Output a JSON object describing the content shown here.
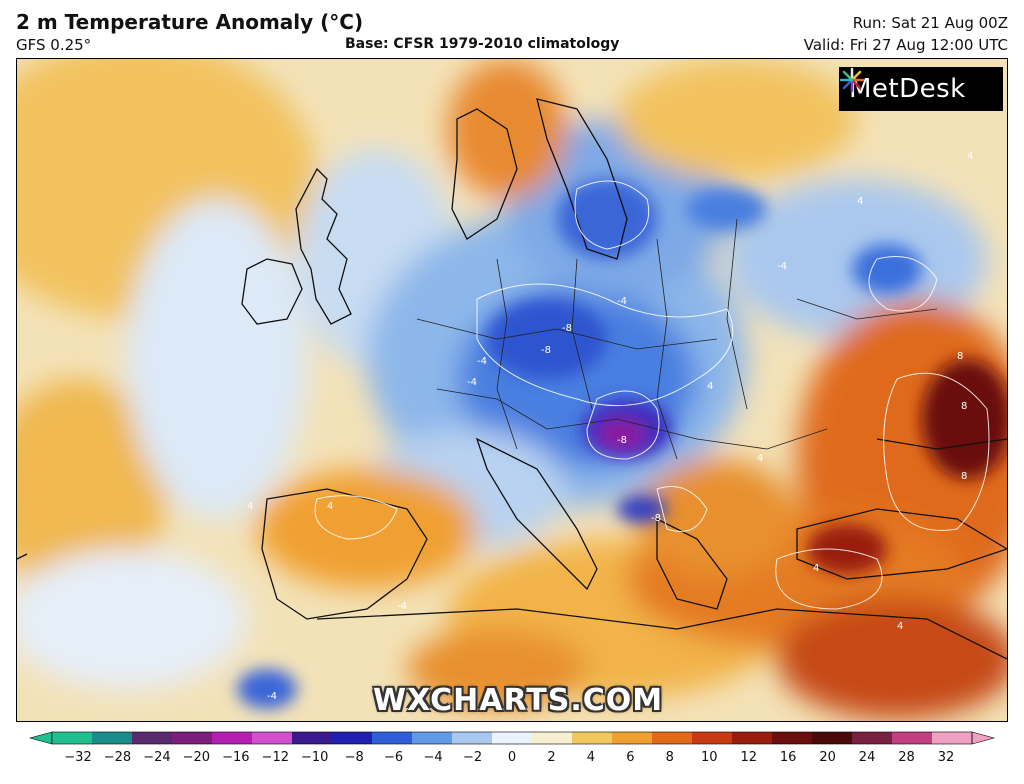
{
  "header": {
    "title": "2 m Temperature Anomaly (°C)",
    "model": "GFS 0.25°",
    "base": "Base: CFSR 1979-2010 climatology",
    "run": "Run: Sat 21 Aug 00Z",
    "valid": "Valid: Fri 27 Aug 12:00 UTC"
  },
  "logo": {
    "text": "MetDesk"
  },
  "watermark": "WXCHARTS.COM",
  "contour_labels": [
    "4",
    "4",
    "4",
    "4",
    "-4",
    "-4",
    "-4",
    "-8",
    "-8",
    "-8",
    "-4",
    "-8",
    "8",
    "8",
    "8",
    "4",
    "4",
    "-4",
    "4",
    "-4",
    "4"
  ],
  "colorbar": {
    "ticks": [
      "−32",
      "−28",
      "−24",
      "−20",
      "−16",
      "−12",
      "−10",
      "−8",
      "−6",
      "−4",
      "−2",
      "0",
      "2",
      "4",
      "6",
      "8",
      "10",
      "12",
      "16",
      "20",
      "24",
      "28",
      "32"
    ],
    "colors": [
      "#1fbf8f",
      "#1a8c8c",
      "#5a2a6e",
      "#7a1f7a",
      "#b21fb2",
      "#d050d0",
      "#3a1a8c",
      "#2020b0",
      "#2f5fd8",
      "#5f9ae8",
      "#a8c8ef",
      "#eaf2fb",
      "#f7efcf",
      "#f0c860",
      "#f0a030",
      "#e06a1a",
      "#c73a12",
      "#9a1e10",
      "#6a0e0e",
      "#4a0a0a",
      "#7a2040",
      "#c04080",
      "#f0a0c0"
    ]
  },
  "colors": {
    "warm_light": "#f3e2b8",
    "warm_mid": "#f2c25e",
    "warm_strong": "#e47a22",
    "warm_extreme": "#9a1e10",
    "cold_light": "#dce9f7",
    "cold_mid": "#8db7ea",
    "cold_strong": "#2f55d0",
    "cold_extreme": "#8a1fa0"
  }
}
